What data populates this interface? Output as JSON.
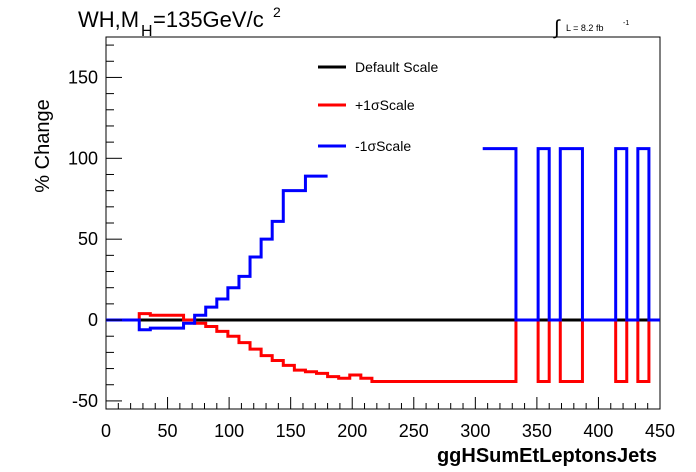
{
  "chart_data": {
    "type": "line",
    "title": "WH,M",
    "title_sub": "H",
    "title_rest": "=135GeV/c",
    "title_sup": "2",
    "lumi": {
      "integral_symbol": "∫",
      "text": "L = 8.2 fb",
      "sup": "-1"
    },
    "xlabel": "ggHSumEtLeptonsJets",
    "ylabel": "% Change",
    "xlim": [
      0,
      450
    ],
    "ylim": [
      -55,
      175
    ],
    "xticks": [
      0,
      50,
      100,
      150,
      200,
      250,
      300,
      350,
      400,
      450
    ],
    "yticks": [
      -50,
      0,
      50,
      100,
      150
    ],
    "legend_position": "top-center",
    "grid": false,
    "series": [
      {
        "name": "Default Scale",
        "color": "#000000",
        "steps": [
          [
            0,
            450,
            0
          ]
        ]
      },
      {
        "name": "+1σScale",
        "color": "#ff0000",
        "steps": [
          [
            0,
            27,
            0
          ],
          [
            27,
            36,
            4
          ],
          [
            36,
            63,
            3
          ],
          [
            63,
            72,
            0
          ],
          [
            72,
            81,
            -2
          ],
          [
            81,
            90,
            -4
          ],
          [
            90,
            99,
            -7
          ],
          [
            99,
            108,
            -10
          ],
          [
            108,
            117,
            -14
          ],
          [
            117,
            126,
            -18
          ],
          [
            126,
            135,
            -22
          ],
          [
            135,
            144,
            -25
          ],
          [
            144,
            153,
            -28
          ],
          [
            153,
            162,
            -31
          ],
          [
            162,
            171,
            -32
          ],
          [
            171,
            180,
            -33
          ],
          [
            180,
            189,
            -35
          ],
          [
            189,
            198,
            -36
          ],
          [
            198,
            207,
            -34
          ],
          [
            207,
            216,
            -36
          ],
          [
            216,
            225,
            -38
          ],
          [
            225,
            333,
            -38
          ],
          [
            333,
            351,
            0
          ],
          [
            351,
            360,
            -38
          ],
          [
            360,
            369,
            0
          ],
          [
            369,
            387,
            -38
          ],
          [
            387,
            414,
            0
          ],
          [
            414,
            423,
            -38
          ],
          [
            423,
            432,
            0
          ],
          [
            432,
            441,
            -38
          ],
          [
            441,
            450,
            0
          ]
        ]
      },
      {
        "name": "-1σScale",
        "color": "#0000ff",
        "steps": [
          [
            0,
            27,
            0
          ],
          [
            27,
            36,
            -6
          ],
          [
            36,
            63,
            -5
          ],
          [
            63,
            72,
            -2
          ],
          [
            72,
            81,
            3
          ],
          [
            81,
            90,
            8
          ],
          [
            90,
            99,
            13
          ],
          [
            99,
            108,
            20
          ],
          [
            108,
            117,
            27
          ],
          [
            117,
            126,
            39
          ],
          [
            126,
            135,
            50
          ],
          [
            135,
            144,
            61
          ],
          [
            144,
            162,
            80
          ],
          [
            162,
            171,
            89
          ],
          [
            171,
            180,
            89
          ],
          [
            306,
            333,
            106
          ],
          [
            333,
            351,
            0
          ],
          [
            351,
            360,
            106
          ],
          [
            360,
            369,
            0
          ],
          [
            369,
            387,
            106
          ],
          [
            387,
            414,
            0
          ],
          [
            414,
            423,
            106
          ],
          [
            423,
            432,
            0
          ],
          [
            432,
            441,
            106
          ],
          [
            441,
            450,
            0
          ]
        ],
        "gap_after_x": 180,
        "resume_x": 306
      }
    ]
  }
}
